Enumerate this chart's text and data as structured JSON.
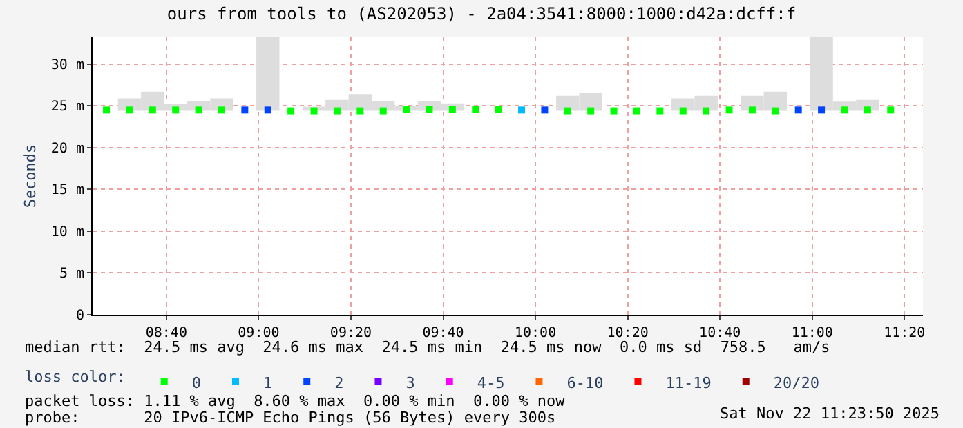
{
  "chart_data": {
    "type": "bar",
    "title": "ours from tools to (AS202053) - 2a04:3541:8000:1000:d42a:dcff:f",
    "ylabel": "Seconds",
    "x": [
      "2025-11-22T08:27",
      "2025-11-22T08:32",
      "2025-11-22T08:37",
      "2025-11-22T08:42",
      "2025-11-22T08:47",
      "2025-11-22T08:52",
      "2025-11-22T08:57",
      "2025-11-22T09:02",
      "2025-11-22T09:07",
      "2025-11-22T09:12",
      "2025-11-22T09:17",
      "2025-11-22T09:22",
      "2025-11-22T09:27",
      "2025-11-22T09:32",
      "2025-11-22T09:37",
      "2025-11-22T09:42",
      "2025-11-22T09:47",
      "2025-11-22T09:52",
      "2025-11-22T09:57",
      "2025-11-22T10:02",
      "2025-11-22T10:07",
      "2025-11-22T10:12",
      "2025-11-22T10:17",
      "2025-11-22T10:22",
      "2025-11-22T10:27",
      "2025-11-22T10:32",
      "2025-11-22T10:37",
      "2025-11-22T10:42",
      "2025-11-22T10:47",
      "2025-11-22T10:52",
      "2025-11-22T10:57",
      "2025-11-22T11:02",
      "2025-11-22T11:07",
      "2025-11-22T11:12",
      "2025-11-22T11:17"
    ],
    "series": [
      {
        "color": "#dddddd",
        "base": [
          null,
          24.4,
          24.4,
          24.4,
          24.4,
          24.4,
          null,
          24.4,
          null,
          24.4,
          24.4,
          24.4,
          24.4,
          24.4,
          24.4,
          24.4,
          null,
          null,
          null,
          null,
          24.4,
          24.4,
          null,
          null,
          null,
          24.4,
          24.4,
          null,
          24.4,
          24.4,
          null,
          24.4,
          24.4,
          24.4,
          null
        ],
        "values": [
          null,
          1.5,
          2.3,
          0.8,
          1.2,
          1.5,
          null,
          8.8,
          null,
          0.5,
          1.3,
          2.0,
          1.2,
          0.6,
          1.2,
          0.9,
          null,
          null,
          null,
          null,
          1.8,
          2.2,
          null,
          null,
          null,
          1.5,
          1.8,
          null,
          1.8,
          2.3,
          null,
          8.8,
          1.1,
          1.3,
          null
        ]
      },
      {
        "type": "scatter",
        "name": "0",
        "color": "#00ff00",
        "values": [
          24.5,
          24.5,
          24.5,
          24.5,
          24.5,
          24.5,
          null,
          null,
          24.4,
          24.4,
          24.4,
          24.4,
          24.4,
          24.6,
          24.6,
          24.6,
          24.6,
          24.6,
          null,
          null,
          24.4,
          24.4,
          24.4,
          24.4,
          24.4,
          24.4,
          24.4,
          24.5,
          24.5,
          24.4,
          null,
          null,
          24.5,
          24.5,
          24.5
        ]
      },
      {
        "type": "scatter",
        "name": "1",
        "color": "#00bbff",
        "values": [
          null,
          null,
          null,
          null,
          null,
          null,
          null,
          null,
          null,
          null,
          null,
          null,
          null,
          null,
          null,
          null,
          null,
          null,
          24.5,
          null,
          null,
          null,
          null,
          null,
          null,
          null,
          null,
          null,
          null,
          null,
          null,
          null,
          null,
          null,
          null
        ]
      },
      {
        "type": "scatter",
        "name": "2",
        "color": "#0044ff",
        "values": [
          null,
          null,
          null,
          null,
          null,
          null,
          24.5,
          24.5,
          null,
          null,
          null,
          null,
          null,
          null,
          null,
          null,
          null,
          null,
          null,
          24.5,
          null,
          null,
          null,
          null,
          null,
          null,
          null,
          null,
          null,
          null,
          24.5,
          24.5,
          null,
          null,
          null
        ]
      },
      {
        "type": "scatter",
        "name": "3",
        "color": "#7700ff",
        "values": [
          null,
          null,
          null,
          null,
          null,
          null,
          null,
          null,
          null,
          null,
          null,
          null,
          null,
          null,
          null,
          null,
          null,
          null,
          null,
          null,
          null,
          null,
          null,
          null,
          null,
          null,
          null,
          null,
          null,
          null,
          null,
          null,
          null,
          null,
          null
        ]
      },
      {
        "type": "scatter",
        "name": "4-5",
        "color": "#ff00ff",
        "values": [
          null,
          null,
          null,
          null,
          null,
          null,
          null,
          null,
          null,
          null,
          null,
          null,
          null,
          null,
          null,
          null,
          null,
          null,
          null,
          null,
          null,
          null,
          null,
          null,
          null,
          null,
          null,
          null,
          null,
          null,
          null,
          null,
          null,
          null,
          null
        ]
      },
      {
        "type": "scatter",
        "name": "6-10",
        "color": "#ff6600",
        "values": [
          null,
          null,
          null,
          null,
          null,
          null,
          null,
          null,
          null,
          null,
          null,
          null,
          null,
          null,
          null,
          null,
          null,
          null,
          null,
          null,
          null,
          null,
          null,
          null,
          null,
          null,
          null,
          null,
          null,
          null,
          null,
          null,
          null,
          null,
          null
        ]
      },
      {
        "type": "scatter",
        "name": "11-19",
        "color": "#ff0000",
        "values": [
          null,
          null,
          null,
          null,
          null,
          null,
          null,
          null,
          null,
          null,
          null,
          null,
          null,
          null,
          null,
          null,
          null,
          null,
          null,
          null,
          null,
          null,
          null,
          null,
          null,
          null,
          null,
          null,
          null,
          null,
          null,
          null,
          null,
          null,
          null
        ]
      },
      {
        "type": "scatter",
        "name": "20/20",
        "color": "#a10000",
        "values": [
          null,
          null,
          null,
          null,
          null,
          null,
          null,
          null,
          null,
          null,
          null,
          null,
          null,
          null,
          null,
          null,
          null,
          null,
          null,
          null,
          null,
          null,
          null,
          null,
          null,
          null,
          null,
          null,
          null,
          null,
          null,
          null,
          null,
          null,
          null
        ]
      }
    ],
    "xlim": [
      "2025-11-22T08:24",
      "2025-11-22T11:24"
    ],
    "xticks": [
      {
        "value": "2025-11-22T08:40",
        "label": "08:40"
      },
      {
        "value": "2025-11-22T09:00",
        "label": "09:00"
      },
      {
        "value": "2025-11-22T09:20",
        "label": "09:20"
      },
      {
        "value": "2025-11-22T09:40",
        "label": "09:40"
      },
      {
        "value": "2025-11-22T10:00",
        "label": "10:00"
      },
      {
        "value": "2025-11-22T10:20",
        "label": "10:20"
      },
      {
        "value": "2025-11-22T10:40",
        "label": "10:40"
      },
      {
        "value": "2025-11-22T11:00",
        "label": "11:00"
      },
      {
        "value": "2025-11-22T11:20",
        "label": "11:20"
      }
    ],
    "ylim": [
      0,
      33.2
    ],
    "yticks": [
      0,
      {
        "value": 5,
        "label": "5 m"
      },
      {
        "value": 10,
        "label": "10 m"
      },
      {
        "value": 15,
        "label": "15 m"
      },
      {
        "value": 20,
        "label": "20 m"
      },
      {
        "value": 25,
        "label": "25 m"
      },
      {
        "value": 30,
        "label": "30 m"
      }
    ],
    "grid": true,
    "marker": "square",
    "legend": "bottom",
    "legend_title": "loss color:",
    "annotations": [
      "median rtt:  24.5 ms avg  24.6 ms max  24.5 ms min  24.5 ms now  0.0 ms sd  758.5   am/s",
      "packet loss: 1.11 % avg  8.60 % max  0.00 % min  0.00 % now",
      "probe:       20 IPv6-ICMP Echo Pings (56 Bytes) every 300s",
      "Sat Nov 22 11:23:50 2025"
    ]
  }
}
